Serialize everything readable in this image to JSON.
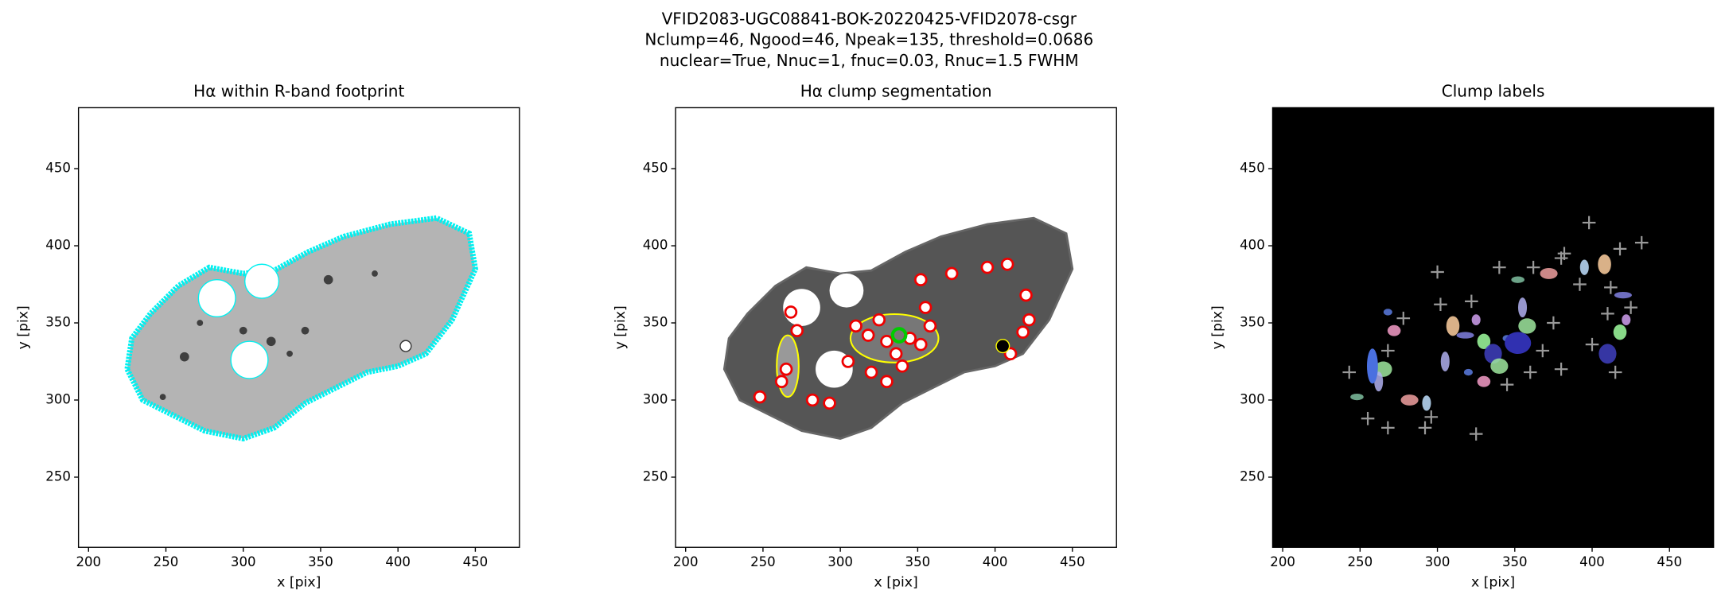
{
  "figure_title": [
    "VFID2083-UGC08841-BOK-20220425-VFID2078-csgr",
    "Nclump=46, Ngood=46, Npeak=135, threshold=0.0686",
    "nuclear=True, Nnuc=1, fnuc=0.03, Rnuc=1.5 FWHM"
  ],
  "chart_data": [
    {
      "type": "image",
      "title": "Hα within R-band footprint",
      "xlabel": "x [pix]",
      "ylabel": "y [pix]",
      "xlim": [
        193.5,
        478.5
      ],
      "ylim": [
        204.5,
        489.5
      ],
      "xticks": [
        200,
        250,
        300,
        350,
        400,
        450
      ],
      "yticks": [
        250,
        300,
        350,
        400,
        450
      ],
      "style": "footprint"
    },
    {
      "type": "image",
      "title": "Hα clump segmentation",
      "xlabel": "x [pix]",
      "ylabel": "y [pix]",
      "xlim": [
        193.5,
        478.5
      ],
      "ylim": [
        204.5,
        489.5
      ],
      "xticks": [
        200,
        250,
        300,
        350,
        400,
        450
      ],
      "yticks": [
        250,
        300,
        350,
        400,
        450
      ],
      "style": "segmentation"
    },
    {
      "type": "image",
      "title": "Clump labels",
      "xlabel": "x [pix]",
      "ylabel": "y [pix]",
      "xlim": [
        193.5,
        478.5
      ],
      "ylim": [
        204.5,
        489.5
      ],
      "xticks": [
        200,
        250,
        300,
        350,
        400,
        450
      ],
      "yticks": [
        250,
        300,
        350,
        400,
        450
      ],
      "style": "labels"
    }
  ]
}
